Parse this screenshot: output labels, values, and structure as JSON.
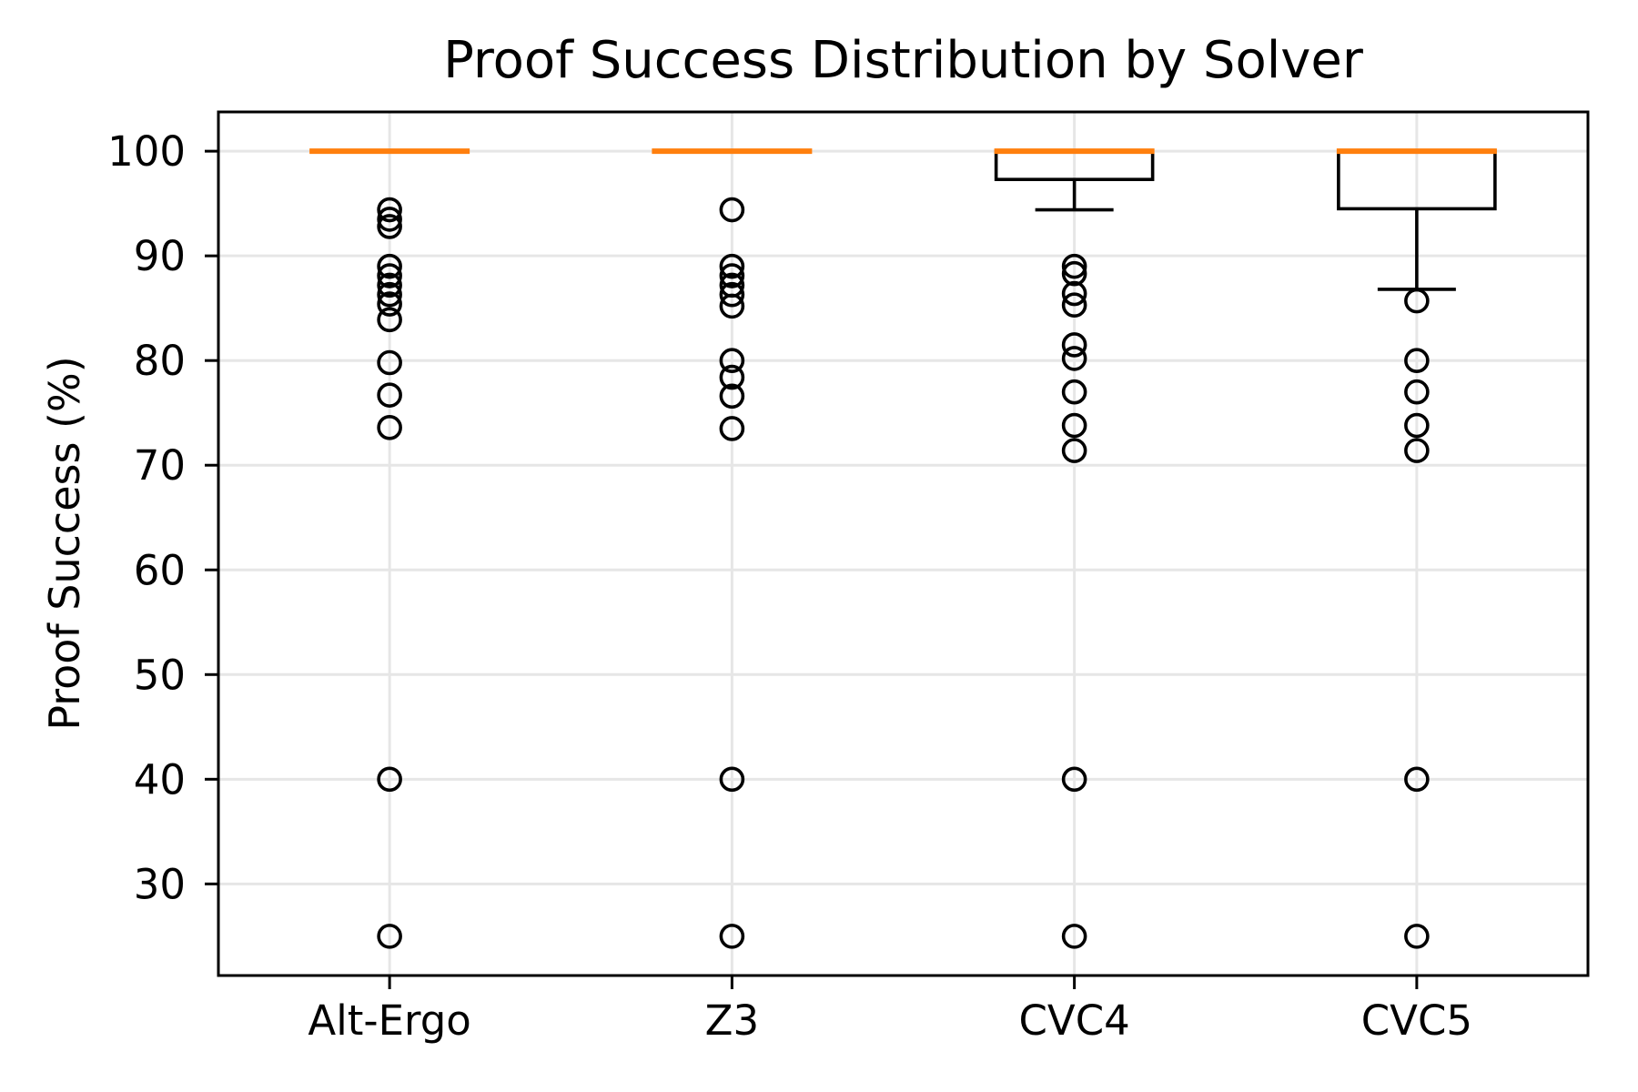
{
  "chart_data": {
    "type": "boxplot",
    "title": "Proof Success Distribution by Solver",
    "ylabel": "Proof Success (%)",
    "xlabel": "",
    "categories": [
      "Alt-Ergo",
      "Z3",
      "CVC4",
      "CVC5"
    ],
    "yticks": [
      30,
      40,
      50,
      60,
      70,
      80,
      90,
      100
    ],
    "ylim": [
      21.25,
      103.75
    ],
    "grid": true,
    "legend": "none",
    "colors": {
      "median": "#ff7f0e",
      "box_edge": "#000000",
      "grid": "#e6e6e6",
      "text": "#000000",
      "background": "#ffffff"
    },
    "boxes": [
      {
        "label": "Alt-Ergo",
        "q1": 100,
        "median": 100,
        "q3": 100,
        "whisker_low": 100,
        "whisker_high": 100,
        "outliers": [
          94.4,
          93.5,
          92.8,
          89.0,
          88.1,
          87.2,
          86.3,
          85.4,
          83.9,
          79.8,
          76.7,
          73.6,
          40,
          25
        ]
      },
      {
        "label": "Z3",
        "q1": 100,
        "median": 100,
        "q3": 100,
        "whisker_low": 100,
        "whisker_high": 100,
        "outliers": [
          94.4,
          89.0,
          88.1,
          87.2,
          86.3,
          85.2,
          80.0,
          78.4,
          76.6,
          73.5,
          40,
          25
        ]
      },
      {
        "label": "CVC4",
        "q1": 97.3,
        "median": 100,
        "q3": 100,
        "whisker_low": 94.4,
        "whisker_high": 100,
        "outliers": [
          89.0,
          88.3,
          86.4,
          85.3,
          81.5,
          80.2,
          77.0,
          73.8,
          71.4,
          40,
          25
        ]
      },
      {
        "label": "CVC5",
        "q1": 94.5,
        "median": 100,
        "q3": 100,
        "whisker_low": 86.8,
        "whisker_high": 100,
        "outliers": [
          85.7,
          80.0,
          77.0,
          73.8,
          71.4,
          40,
          25
        ]
      }
    ]
  }
}
